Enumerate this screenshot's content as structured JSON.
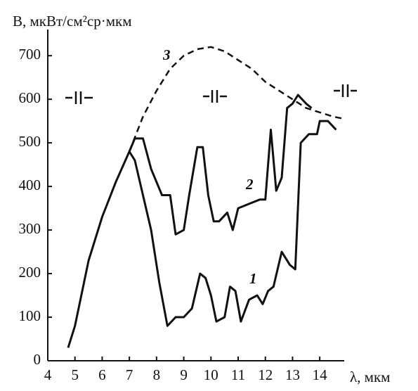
{
  "chart_data": {
    "type": "line",
    "y_label": "B, мкВт/см²ср·мкм",
    "x_label": "λ, мкм",
    "xlim": [
      4,
      14.9
    ],
    "xticks": [
      4,
      5,
      6,
      7,
      8,
      9,
      10,
      11,
      12,
      13,
      14
    ],
    "ylim": [
      0,
      760
    ],
    "yticks": [
      0,
      100,
      200,
      300,
      400,
      500,
      600,
      700
    ],
    "grid": false,
    "series": [
      {
        "name": "1",
        "color": "#111111",
        "dashed": false,
        "x": [
          4.75,
          5,
          5.5,
          6,
          6.5,
          7,
          7.2,
          7.5,
          7.8,
          8.1,
          8.4,
          8.7,
          9,
          9.3,
          9.6,
          9.8,
          10,
          10.2,
          10.5,
          10.7,
          10.9,
          11.1,
          11.4,
          11.7,
          11.9,
          12.1,
          12.3,
          12.6,
          12.9,
          13.1,
          13.3,
          13.6,
          13.9,
          14,
          14.3,
          14.6
        ],
        "values": [
          30,
          80,
          230,
          330,
          410,
          480,
          460,
          380,
          300,
          180,
          80,
          100,
          100,
          120,
          200,
          190,
          150,
          90,
          100,
          170,
          160,
          90,
          140,
          150,
          130,
          160,
          170,
          250,
          220,
          210,
          500,
          520,
          520,
          550,
          550,
          530
        ]
      },
      {
        "name": "2",
        "color": "#111111",
        "dashed": false,
        "x": [
          7,
          7.2,
          7.5,
          7.8,
          8.2,
          8.5,
          8.7,
          9,
          9.2,
          9.5,
          9.7,
          9.9,
          10.1,
          10.3,
          10.6,
          10.8,
          11,
          11.4,
          11.8,
          12,
          12.2,
          12.4,
          12.6,
          12.8,
          13,
          13.2,
          13.5,
          13.7
        ],
        "values": [
          480,
          510,
          510,
          440,
          380,
          380,
          290,
          300,
          380,
          490,
          490,
          380,
          320,
          320,
          340,
          300,
          350,
          360,
          370,
          370,
          530,
          390,
          420,
          580,
          590,
          610,
          590,
          580
        ]
      },
      {
        "name": "3",
        "color": "#111111",
        "dashed": true,
        "x": [
          7,
          7.5,
          8,
          8.5,
          9,
          9.5,
          10,
          10.5,
          11,
          11.5,
          12,
          12.5,
          13,
          13.5,
          14,
          14.5,
          14.9
        ],
        "values": [
          480,
          560,
          620,
          670,
          700,
          715,
          720,
          710,
          690,
          670,
          640,
          620,
          600,
          580,
          570,
          560,
          555
        ]
      }
    ]
  }
}
